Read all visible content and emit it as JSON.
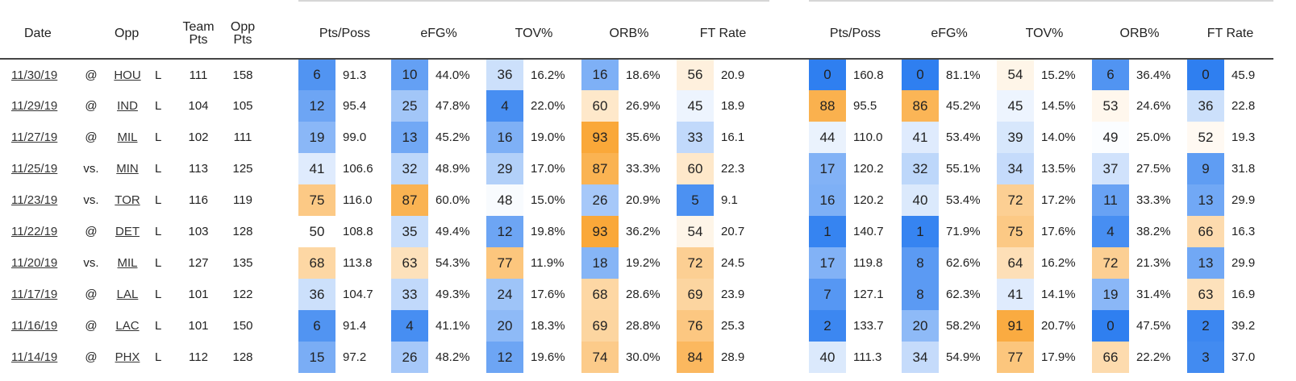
{
  "table": {
    "headers": {
      "date": "Date",
      "opp": "Opp",
      "team_pts": [
        "Team",
        "Pts"
      ],
      "opp_pts": [
        "Opp",
        "Pts"
      ],
      "offense": [
        "Pts/Poss",
        "eFG%",
        "TOV%",
        "ORB%",
        "FT Rate"
      ],
      "defense": [
        "Pts/Poss",
        "eFG%",
        "TOV%",
        "ORB%",
        "FT Rate"
      ]
    },
    "colors": {
      "scale_low": "#2f7ff0",
      "scale_mid": "#ffffff",
      "scale_high": "#f99b1c"
    },
    "rows": [
      {
        "date": "11/30/19",
        "loc": "@",
        "opp": "HOU",
        "res": "L",
        "team_pts": "111",
        "opp_pts": "158",
        "off": [
          [
            "6",
            "91.3"
          ],
          [
            "10",
            "44.0%"
          ],
          [
            "36",
            "16.2%"
          ],
          [
            "16",
            "18.6%"
          ],
          [
            "56",
            "20.9"
          ]
        ],
        "def": [
          [
            "0",
            "160.8"
          ],
          [
            "0",
            "81.1%"
          ],
          [
            "54",
            "15.2%"
          ],
          [
            "6",
            "36.4%"
          ],
          [
            "0",
            "45.9"
          ]
        ]
      },
      {
        "date": "11/29/19",
        "loc": "@",
        "opp": "IND",
        "res": "L",
        "team_pts": "104",
        "opp_pts": "105",
        "off": [
          [
            "12",
            "95.4"
          ],
          [
            "25",
            "47.8%"
          ],
          [
            "4",
            "22.0%"
          ],
          [
            "60",
            "26.9%"
          ],
          [
            "45",
            "18.9"
          ]
        ],
        "def": [
          [
            "88",
            "95.5"
          ],
          [
            "86",
            "45.2%"
          ],
          [
            "45",
            "14.5%"
          ],
          [
            "53",
            "24.6%"
          ],
          [
            "36",
            "22.8"
          ]
        ]
      },
      {
        "date": "11/27/19",
        "loc": "@",
        "opp": "MIL",
        "res": "L",
        "team_pts": "102",
        "opp_pts": "111",
        "off": [
          [
            "19",
            "99.0"
          ],
          [
            "13",
            "45.2%"
          ],
          [
            "16",
            "19.0%"
          ],
          [
            "93",
            "35.6%"
          ],
          [
            "33",
            "16.1"
          ]
        ],
        "def": [
          [
            "44",
            "110.0"
          ],
          [
            "41",
            "53.4%"
          ],
          [
            "39",
            "14.0%"
          ],
          [
            "49",
            "25.0%"
          ],
          [
            "52",
            "19.3"
          ]
        ]
      },
      {
        "date": "11/25/19",
        "loc": "vs.",
        "opp": "MIN",
        "res": "L",
        "team_pts": "113",
        "opp_pts": "125",
        "off": [
          [
            "41",
            "106.6"
          ],
          [
            "32",
            "48.9%"
          ],
          [
            "29",
            "17.0%"
          ],
          [
            "87",
            "33.3%"
          ],
          [
            "60",
            "22.3"
          ]
        ],
        "def": [
          [
            "17",
            "120.2"
          ],
          [
            "32",
            "55.1%"
          ],
          [
            "34",
            "13.5%"
          ],
          [
            "37",
            "27.5%"
          ],
          [
            "9",
            "31.8"
          ]
        ]
      },
      {
        "date": "11/23/19",
        "loc": "vs.",
        "opp": "TOR",
        "res": "L",
        "team_pts": "116",
        "opp_pts": "119",
        "off": [
          [
            "75",
            "116.0"
          ],
          [
            "87",
            "60.0%"
          ],
          [
            "48",
            "15.0%"
          ],
          [
            "26",
            "20.9%"
          ],
          [
            "5",
            "9.1"
          ]
        ],
        "def": [
          [
            "16",
            "120.2"
          ],
          [
            "40",
            "53.4%"
          ],
          [
            "72",
            "17.2%"
          ],
          [
            "11",
            "33.3%"
          ],
          [
            "13",
            "29.9"
          ]
        ]
      },
      {
        "date": "11/22/19",
        "loc": "@",
        "opp": "DET",
        "res": "L",
        "team_pts": "103",
        "opp_pts": "128",
        "off": [
          [
            "50",
            "108.8"
          ],
          [
            "35",
            "49.4%"
          ],
          [
            "12",
            "19.8%"
          ],
          [
            "93",
            "36.2%"
          ],
          [
            "54",
            "20.7"
          ]
        ],
        "def": [
          [
            "1",
            "140.7"
          ],
          [
            "1",
            "71.9%"
          ],
          [
            "75",
            "17.6%"
          ],
          [
            "4",
            "38.2%"
          ],
          [
            "66",
            "16.3"
          ]
        ]
      },
      {
        "date": "11/20/19",
        "loc": "vs.",
        "opp": "MIL",
        "res": "L",
        "team_pts": "127",
        "opp_pts": "135",
        "off": [
          [
            "68",
            "113.8"
          ],
          [
            "63",
            "54.3%"
          ],
          [
            "77",
            "11.9%"
          ],
          [
            "18",
            "19.2%"
          ],
          [
            "72",
            "24.5"
          ]
        ],
        "def": [
          [
            "17",
            "119.8"
          ],
          [
            "8",
            "62.6%"
          ],
          [
            "64",
            "16.2%"
          ],
          [
            "72",
            "21.3%"
          ],
          [
            "13",
            "29.9"
          ]
        ]
      },
      {
        "date": "11/17/19",
        "loc": "@",
        "opp": "LAL",
        "res": "L",
        "team_pts": "101",
        "opp_pts": "122",
        "off": [
          [
            "36",
            "104.7"
          ],
          [
            "33",
            "49.3%"
          ],
          [
            "24",
            "17.6%"
          ],
          [
            "68",
            "28.6%"
          ],
          [
            "69",
            "23.9"
          ]
        ],
        "def": [
          [
            "7",
            "127.1"
          ],
          [
            "8",
            "62.3%"
          ],
          [
            "41",
            "14.1%"
          ],
          [
            "19",
            "31.4%"
          ],
          [
            "63",
            "16.9"
          ]
        ]
      },
      {
        "date": "11/16/19",
        "loc": "@",
        "opp": "LAC",
        "res": "L",
        "team_pts": "101",
        "opp_pts": "150",
        "off": [
          [
            "6",
            "91.4"
          ],
          [
            "4",
            "41.1%"
          ],
          [
            "20",
            "18.3%"
          ],
          [
            "69",
            "28.8%"
          ],
          [
            "76",
            "25.3"
          ]
        ],
        "def": [
          [
            "2",
            "133.7"
          ],
          [
            "20",
            "58.2%"
          ],
          [
            "91",
            "20.7%"
          ],
          [
            "0",
            "47.5%"
          ],
          [
            "2",
            "39.2"
          ]
        ]
      },
      {
        "date": "11/14/19",
        "loc": "@",
        "opp": "PHX",
        "res": "L",
        "team_pts": "112",
        "opp_pts": "128",
        "off": [
          [
            "15",
            "97.2"
          ],
          [
            "26",
            "48.2%"
          ],
          [
            "12",
            "19.6%"
          ],
          [
            "74",
            "30.0%"
          ],
          [
            "84",
            "28.9"
          ]
        ],
        "def": [
          [
            "40",
            "111.3"
          ],
          [
            "34",
            "54.9%"
          ],
          [
            "77",
            "17.9%"
          ],
          [
            "66",
            "22.2%"
          ],
          [
            "3",
            "37.0"
          ]
        ]
      }
    ]
  }
}
